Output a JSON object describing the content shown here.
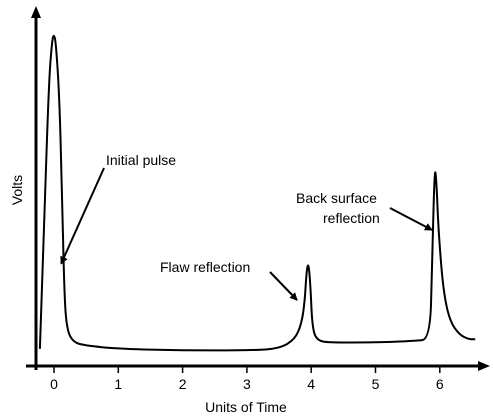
{
  "chart_data": {
    "type": "line",
    "title": "",
    "xlabel": "Units of Time",
    "ylabel": "Volts",
    "xlim": [
      -0.3,
      6.65
    ],
    "ylim": [
      0,
      1.0
    ],
    "x_ticks": [
      0,
      1,
      2,
      3,
      4,
      5,
      6
    ],
    "x_tick_labels": [
      "0",
      "1",
      "2",
      "3",
      "4",
      "5",
      "6"
    ],
    "grid": false,
    "legend": "none",
    "series": [
      {
        "values_x": [
          -0.22,
          -0.15,
          -0.08,
          -0.03,
          0.0,
          0.03,
          0.08,
          0.12,
          0.16,
          0.2,
          0.3,
          0.5,
          1.0,
          2.0,
          3.0,
          3.5,
          3.75,
          3.85,
          3.9,
          3.93,
          3.96,
          3.99,
          4.02,
          4.1,
          4.3,
          5.0,
          5.6,
          5.85,
          5.88,
          5.92,
          5.95,
          5.98,
          6.05,
          6.15,
          6.3,
          6.45,
          6.55
        ],
        "values_y": [
          0.01,
          0.42,
          0.85,
          0.98,
          1.0,
          0.97,
          0.82,
          0.55,
          0.18,
          0.07,
          0.03,
          0.02,
          0.01,
          0.005,
          0.005,
          0.01,
          0.04,
          0.09,
          0.16,
          0.26,
          0.28,
          0.2,
          0.07,
          0.035,
          0.03,
          0.03,
          0.035,
          0.04,
          0.28,
          0.59,
          0.53,
          0.38,
          0.2,
          0.1,
          0.055,
          0.04,
          0.04
        ]
      }
    ],
    "annotations": [
      {
        "text": "Initial pulse",
        "target_x": 0.08,
        "target_y": 0.46
      },
      {
        "text": "Flaw reflection",
        "target_x": 3.88,
        "target_y": 0.16
      },
      {
        "text_lines": [
          "Back surface",
          "reflection"
        ],
        "target_x": 5.88,
        "target_y": 0.38
      }
    ]
  }
}
